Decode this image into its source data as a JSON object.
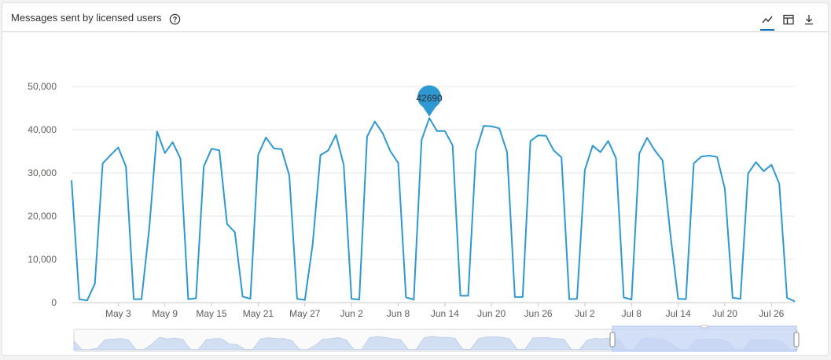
{
  "header": {
    "title": "Messages sent by licensed users",
    "help_icon": "question-circle-icon",
    "tools": [
      {
        "name": "line-chart-view-icon",
        "active": true
      },
      {
        "name": "table-view-icon",
        "active": false
      },
      {
        "name": "download-icon",
        "active": false
      }
    ]
  },
  "colors": {
    "line": "#2e98d3",
    "grid": "#e6e6e6",
    "axis_text": "#605e5c",
    "tooltip": "#2e98d3",
    "brush": "#c5d4f5",
    "accent": "#0f6cbd"
  },
  "chart_data": {
    "type": "line",
    "title": "Messages sent by licensed users",
    "xlabel": "",
    "ylabel": "",
    "y_ticks": [
      "0",
      "10,000",
      "20,000",
      "30,000",
      "40,000",
      "50,000"
    ],
    "ylim": [
      0,
      50000
    ],
    "x_ticks": [
      "May 3",
      "May 9",
      "May 15",
      "May 21",
      "May 27",
      "Jun 2",
      "Jun 8",
      "Jun 14",
      "Jun 20",
      "Jun 26",
      "Jul 2",
      "Jul 8",
      "Jul 14",
      "Jul 20",
      "Jul 26"
    ],
    "x_start": "Apr 27",
    "x_end": "Jul 30",
    "grid": true,
    "highlighted_point": {
      "x": "Jun 12",
      "value": 42690,
      "label": "42690"
    },
    "series": [
      {
        "values": [
          28300,
          800,
          500,
          4400,
          32200,
          34100,
          35900,
          31500,
          800,
          800,
          17300,
          39600,
          34600,
          37100,
          33300,
          800,
          1000,
          31500,
          35600,
          35200,
          18200,
          16300,
          1400,
          900,
          34200,
          38200,
          35700,
          35500,
          29400,
          900,
          600,
          13500,
          34100,
          35200,
          38800,
          31900,
          900,
          700,
          38400,
          41900,
          39200,
          35000,
          32300,
          1200,
          700,
          37600,
          42690,
          39700,
          39700,
          36400,
          1600,
          1600,
          35000,
          40900,
          40800,
          40300,
          34800,
          1300,
          1300,
          37400,
          38700,
          38600,
          35200,
          33600,
          800,
          900,
          30700,
          36300,
          34800,
          37400,
          33400,
          1200,
          700,
          34500,
          38100,
          35200,
          32900,
          15800,
          900,
          800,
          32200,
          33800,
          34000,
          33700,
          26300,
          1100,
          900,
          29900,
          32500,
          30400,
          31900,
          27500,
          1100,
          300
        ]
      }
    ]
  }
}
